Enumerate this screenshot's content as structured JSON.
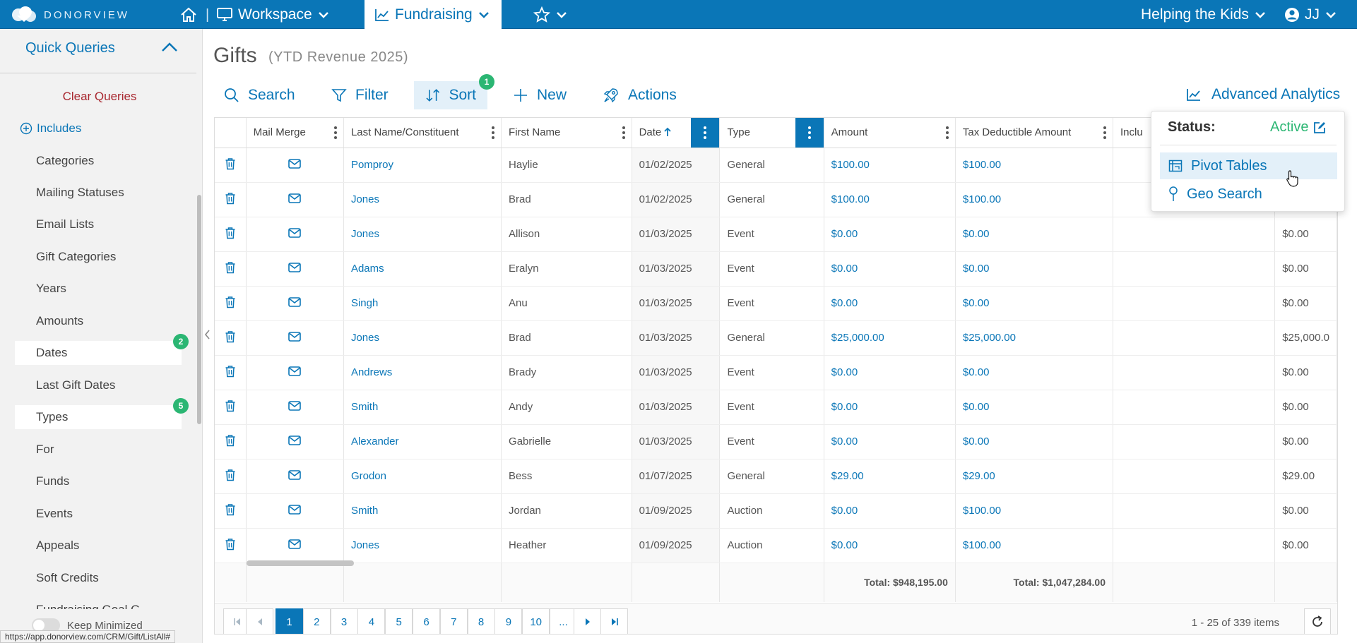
{
  "colors": {
    "brand": "#0a76b7",
    "badge": "#2bb673",
    "danger": "#a8272f"
  },
  "nav": {
    "logo_text": "DONORVIEW",
    "workspace_label": "Workspace",
    "fundraising_label": "Fundraising",
    "org_label": "Helping the Kids",
    "user_initials": "JJ"
  },
  "sidebar": {
    "title": "Quick Queries",
    "clear_label": "Clear Queries",
    "includes_label": "Includes",
    "items": [
      {
        "label": "Categories"
      },
      {
        "label": "Mailing Statuses"
      },
      {
        "label": "Email Lists"
      },
      {
        "label": "Gift Categories"
      },
      {
        "label": "Years"
      },
      {
        "label": "Amounts"
      },
      {
        "label": "Dates",
        "badge": "2"
      },
      {
        "label": "Last Gift Dates"
      },
      {
        "label": "Types",
        "badge": "5"
      },
      {
        "label": "For"
      },
      {
        "label": "Funds"
      },
      {
        "label": "Events"
      },
      {
        "label": "Appeals"
      },
      {
        "label": "Soft Credits"
      },
      {
        "label": "Fundraising Goal G..."
      }
    ],
    "keep_minimized_label": "Keep Minimized"
  },
  "page": {
    "title": "Gifts",
    "subtitle": "(YTD Revenue 2025)"
  },
  "toolbar": {
    "search_label": "Search",
    "filter_label": "Filter",
    "sort_label": "Sort",
    "sort_count": "1",
    "new_label": "New",
    "actions_label": "Actions",
    "advanced_analytics_label": "Advanced Analytics"
  },
  "grid": {
    "columns": [
      "Mail Merge",
      "Last Name/Constituent",
      "First Name",
      "Date",
      "Type",
      "Amount",
      "Tax Deductible Amount",
      "Inclu",
      ""
    ],
    "rows": [
      {
        "last": "Pomproy",
        "first": "Haylie",
        "date": "01/02/2025",
        "type": "General",
        "amount": "$100.00",
        "tax": "$100.00",
        "extra": ""
      },
      {
        "last": "Jones",
        "first": "Brad",
        "date": "01/02/2025",
        "type": "General",
        "amount": "$100.00",
        "tax": "$100.00",
        "extra": ""
      },
      {
        "last": "Jones",
        "first": "Allison",
        "date": "01/03/2025",
        "type": "Event",
        "amount": "$0.00",
        "tax": "$0.00",
        "extra": "$0.00"
      },
      {
        "last": "Adams",
        "first": "Eralyn",
        "date": "01/03/2025",
        "type": "Event",
        "amount": "$0.00",
        "tax": "$0.00",
        "extra": "$0.00"
      },
      {
        "last": "Singh",
        "first": "Anu",
        "date": "01/03/2025",
        "type": "Event",
        "amount": "$0.00",
        "tax": "$0.00",
        "extra": "$0.00"
      },
      {
        "last": "Jones",
        "first": "Brad",
        "date": "01/03/2025",
        "type": "General",
        "amount": "$25,000.00",
        "tax": "$25,000.00",
        "extra": "$25,000.0"
      },
      {
        "last": "Andrews",
        "first": "Brady",
        "date": "01/03/2025",
        "type": "Event",
        "amount": "$0.00",
        "tax": "$0.00",
        "extra": "$0.00"
      },
      {
        "last": "Smith",
        "first": "Andy",
        "date": "01/03/2025",
        "type": "Event",
        "amount": "$0.00",
        "tax": "$0.00",
        "extra": "$0.00"
      },
      {
        "last": "Alexander",
        "first": "Gabrielle",
        "date": "01/03/2025",
        "type": "Event",
        "amount": "$0.00",
        "tax": "$0.00",
        "extra": "$0.00"
      },
      {
        "last": "Grodon",
        "first": "Bess",
        "date": "01/07/2025",
        "type": "General",
        "amount": "$29.00",
        "tax": "$29.00",
        "extra": "$29.00"
      },
      {
        "last": "Smith",
        "first": "Jordan",
        "date": "01/09/2025",
        "type": "Auction",
        "amount": "$0.00",
        "tax": "$100.00",
        "extra": "$0.00"
      },
      {
        "last": "Jones",
        "first": "Heather",
        "date": "01/09/2025",
        "type": "Auction",
        "amount": "$0.00",
        "tax": "$100.00",
        "extra": "$0.00"
      }
    ],
    "totals": {
      "amount": "Total: $948,195.00",
      "tax": "Total: $1,047,284.00"
    }
  },
  "pager": {
    "pages": [
      "1",
      "2",
      "3",
      "4",
      "5",
      "6",
      "7",
      "8",
      "9",
      "10",
      "..."
    ],
    "current": "1",
    "info": "1 - 25 of 339 items"
  },
  "analytics_menu": {
    "status_label": "Status:",
    "status_value": "Active",
    "items": [
      {
        "label": "Pivot Tables",
        "icon": "pivot-table-icon"
      },
      {
        "label": "Geo Search",
        "icon": "map-pin-icon"
      }
    ]
  },
  "status_bar": {
    "url": "https://app.donorview.com/CRM/Gift/ListAll#"
  }
}
